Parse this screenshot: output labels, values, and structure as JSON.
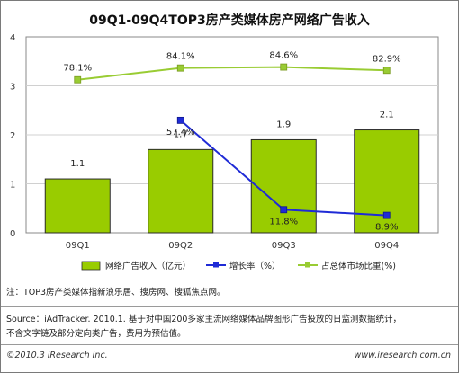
{
  "chart_data": {
    "type": "bar",
    "title": "09Q1-09Q4TOP3房产类媒体房产网络广告收入",
    "categories": [
      "09Q1",
      "09Q2",
      "09Q3",
      "09Q4"
    ],
    "ylim": [
      0,
      4
    ],
    "yticks": [
      "0",
      "1",
      "2",
      "3",
      "4"
    ],
    "grid": true,
    "legend_position": "bottom",
    "series": [
      {
        "name": "网络广告收入（亿元）",
        "kind": "bar",
        "axis": "left",
        "color": "#99cc00",
        "values": [
          1.1,
          1.7,
          1.9,
          2.1
        ],
        "labels": [
          "1.1",
          "1.7",
          "1.9",
          "2.1"
        ]
      },
      {
        "name": "增长率（%）",
        "kind": "line",
        "axis": "right",
        "color": "#1f2bd6",
        "values": [
          null,
          57.4,
          11.8,
          8.9
        ],
        "labels": [
          null,
          "57.4%",
          "11.8%",
          "8.9%"
        ]
      },
      {
        "name": "占总体市场比重(%)",
        "kind": "line",
        "axis": "right",
        "color": "#99cc33",
        "values": [
          78.1,
          84.1,
          84.6,
          82.9
        ],
        "labels": [
          "78.1%",
          "84.1%",
          "84.6%",
          "82.9%"
        ]
      }
    ]
  },
  "notes": {
    "note": "注：TOP3房产类媒体指新浪乐居、搜房网、搜狐焦点网。",
    "source_line1": "Source：iAdTracker. 2010.1. 基于对中国200多家主流网络媒体品牌图形广告投放的日监测数据统计，",
    "source_line2": "不含文字链及部分定向类广告，费用为预估值。"
  },
  "footer": {
    "copyright": "©2010.3 iResearch Inc.",
    "website": "www.iresearch.com.cn"
  }
}
